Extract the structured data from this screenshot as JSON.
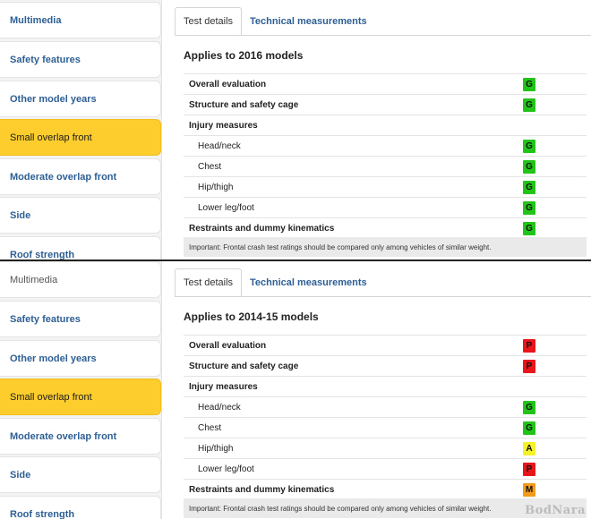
{
  "colors": {
    "G": "#22c41a",
    "A": "#f5f22a",
    "M": "#f39a1b",
    "P": "#e8161b"
  },
  "panels": [
    {
      "sidebar": [
        "Multimedia",
        "Safety features",
        "Other model years",
        "Small overlap front",
        "Moderate overlap front",
        "Side",
        "Roof strength"
      ],
      "tabs": [
        "Test details",
        "Technical measurements"
      ],
      "applies": "Applies to 2016 models",
      "rows": [
        {
          "label": "Overall evaluation",
          "rating": "G",
          "type": "bold"
        },
        {
          "label": "Structure and safety cage",
          "rating": "G",
          "type": "bold"
        },
        {
          "label": "Injury measures",
          "rating": "",
          "type": "bold"
        },
        {
          "label": "Head/neck",
          "rating": "G",
          "type": "sub"
        },
        {
          "label": "Chest",
          "rating": "G",
          "type": "sub"
        },
        {
          "label": "Hip/thigh",
          "rating": "G",
          "type": "sub"
        },
        {
          "label": "Lower leg/foot",
          "rating": "G",
          "type": "sub"
        },
        {
          "label": "Restraints and dummy kinematics",
          "rating": "G",
          "type": "bold"
        }
      ],
      "note": "Important: Frontal crash test ratings should be compared only among vehicles of similar weight."
    },
    {
      "sidebar": [
        "Multimedia",
        "Safety features",
        "Other model years",
        "Small overlap front",
        "Moderate overlap front",
        "Side",
        "Roof strength"
      ],
      "tabs": [
        "Test details",
        "Technical measurements"
      ],
      "applies": "Applies to 2014-15 models",
      "rows": [
        {
          "label": "Overall evaluation",
          "rating": "P",
          "type": "bold"
        },
        {
          "label": "Structure and safety cage",
          "rating": "P",
          "type": "bold"
        },
        {
          "label": "Injury measures",
          "rating": "",
          "type": "bold"
        },
        {
          "label": "Head/neck",
          "rating": "G",
          "type": "sub"
        },
        {
          "label": "Chest",
          "rating": "G",
          "type": "sub"
        },
        {
          "label": "Hip/thigh",
          "rating": "A",
          "type": "sub"
        },
        {
          "label": "Lower leg/foot",
          "rating": "P",
          "type": "sub"
        },
        {
          "label": "Restraints and dummy kinematics",
          "rating": "M",
          "type": "bold"
        }
      ],
      "note": "Important: Frontal crash test ratings should be compared only among vehicles of similar weight."
    }
  ],
  "watermark": "BodNara"
}
